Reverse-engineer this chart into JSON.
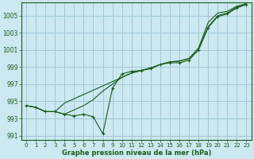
{
  "xlabel": "Graphe pression niveau de la mer (hPa)",
  "background_color": "#cce8f0",
  "grid_color": "#a0c8d8",
  "line_color": "#1a5c1a",
  "xlim": [
    -0.5,
    23.5
  ],
  "ylim": [
    990.5,
    1006.5
  ],
  "yticks": [
    991,
    993,
    995,
    997,
    999,
    1001,
    1003,
    1005
  ],
  "xticks": [
    0,
    1,
    2,
    3,
    4,
    5,
    6,
    7,
    8,
    9,
    10,
    11,
    12,
    13,
    14,
    15,
    16,
    17,
    18,
    19,
    20,
    21,
    22,
    23
  ],
  "series_jagged": [
    994.5,
    994.3,
    993.8,
    993.8,
    993.5,
    993.3,
    993.5,
    993.2,
    991.2,
    996.5,
    998.2,
    998.5,
    998.6,
    998.8,
    999.3,
    999.5,
    999.5,
    999.8,
    1001.0,
    1003.6,
    1004.9,
    1005.2,
    1005.9,
    1006.3
  ],
  "series_line1": [
    994.5,
    994.3,
    993.8,
    993.8,
    993.5,
    994.0,
    994.5,
    995.2,
    996.2,
    997.0,
    997.8,
    998.3,
    998.6,
    998.9,
    999.3,
    999.6,
    999.7,
    1000.0,
    1001.2,
    1003.7,
    1005.0,
    1005.3,
    1006.0,
    1006.4
  ],
  "series_line2": [
    994.5,
    994.3,
    993.8,
    993.8,
    994.8,
    995.3,
    995.8,
    996.3,
    996.8,
    997.3,
    997.8,
    998.3,
    998.6,
    998.9,
    999.3,
    999.6,
    999.7,
    1000.0,
    1001.2,
    1004.2,
    1005.3,
    1005.5,
    1006.1,
    1006.4
  ]
}
